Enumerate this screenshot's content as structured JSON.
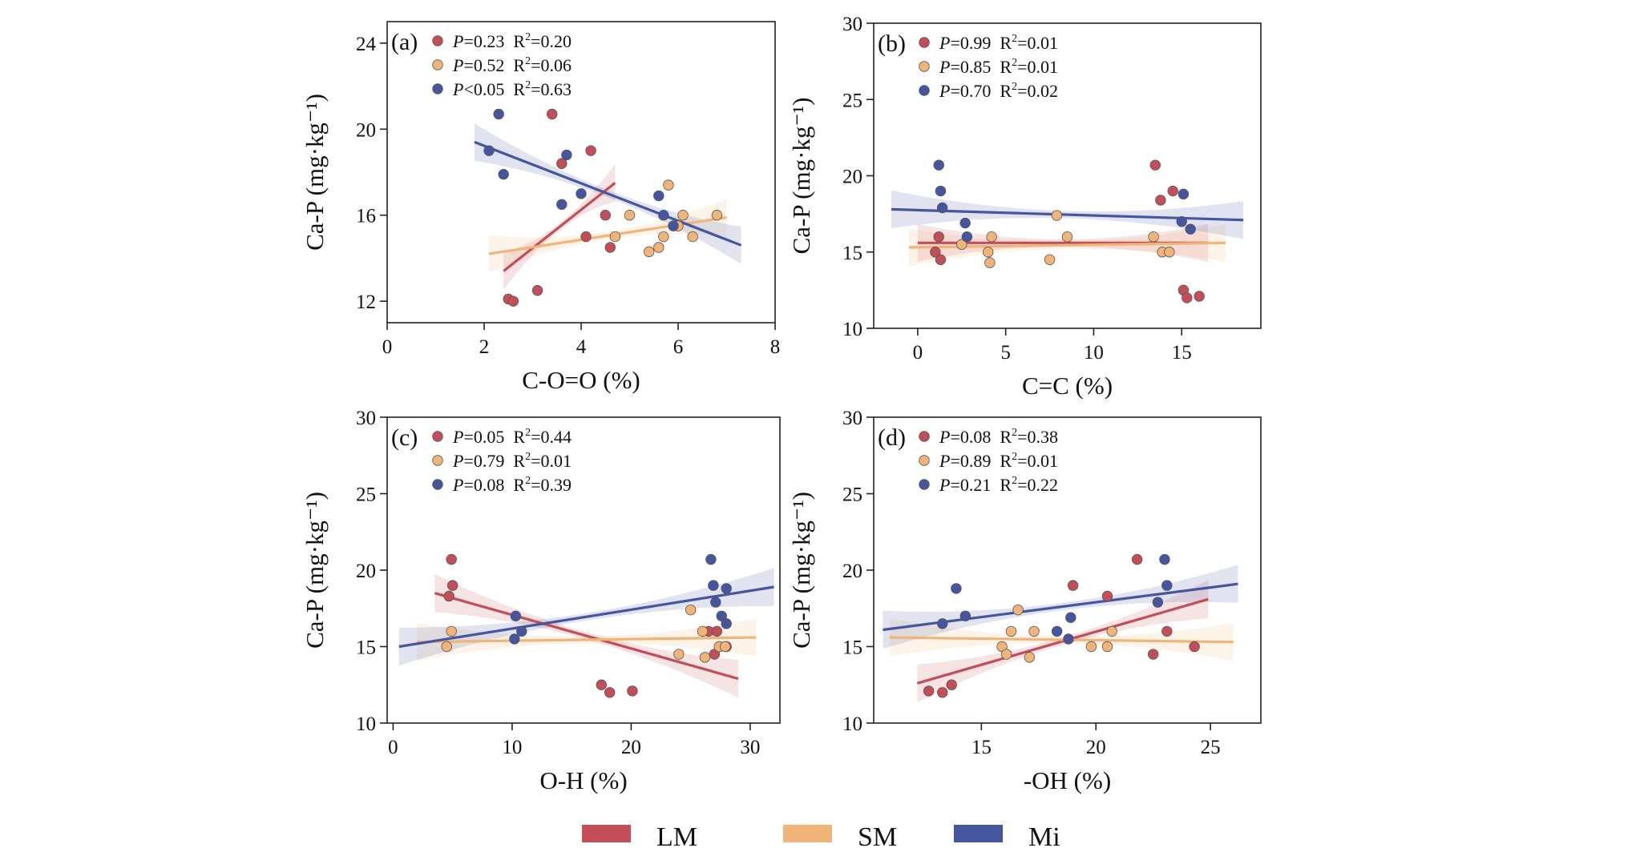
{
  "colors": {
    "LM": "#c44e58",
    "SM": "#f0b478",
    "Mi": "#4555a0"
  },
  "legend": [
    {
      "key": "LM",
      "label": "LM"
    },
    {
      "key": "SM",
      "label": "SM"
    },
    {
      "key": "Mi",
      "label": "Mi"
    }
  ],
  "chart_data": [
    {
      "type": "scatter",
      "panel": "(a)",
      "xlabel": "C-O=O (%)",
      "ylabel": "Ca-P (mg·kg⁻¹)",
      "xlim": [
        0,
        8
      ],
      "ylim": [
        11,
        25
      ],
      "xticks": [
        0,
        2,
        4,
        6,
        8
      ],
      "yticks": [
        12,
        16,
        20,
        24
      ],
      "stats": [
        {
          "series": "LM",
          "P": "=0.23",
          "R2": "=0.20"
        },
        {
          "series": "SM",
          "P": "=0.52",
          "R2": "=0.06"
        },
        {
          "series": "Mi",
          "P": "<0.05",
          "R2": "=0.63"
        }
      ],
      "series": [
        {
          "name": "LM",
          "points": [
            [
              2.5,
              12.1
            ],
            [
              2.6,
              12.0
            ],
            [
              3.1,
              12.5
            ],
            [
              3.4,
              20.7
            ],
            [
              3.6,
              18.4
            ],
            [
              4.1,
              15.0
            ],
            [
              4.2,
              19.0
            ],
            [
              4.5,
              16.0
            ],
            [
              4.6,
              14.5
            ]
          ],
          "fit": [
            [
              2.4,
              13.4
            ],
            [
              4.7,
              17.5
            ]
          ]
        },
        {
          "name": "SM",
          "points": [
            [
              4.7,
              15.0
            ],
            [
              5.0,
              16.0
            ],
            [
              5.4,
              14.3
            ],
            [
              5.6,
              14.5
            ],
            [
              5.7,
              15.0
            ],
            [
              5.8,
              17.4
            ],
            [
              6.0,
              15.5
            ],
            [
              6.1,
              16.0
            ],
            [
              6.3,
              15.0
            ],
            [
              6.8,
              16.0
            ]
          ],
          "fit": [
            [
              2.1,
              14.2
            ],
            [
              7.0,
              15.9
            ]
          ]
        },
        {
          "name": "Mi",
          "points": [
            [
              2.1,
              19.0
            ],
            [
              2.3,
              20.7
            ],
            [
              2.4,
              17.9
            ],
            [
              3.6,
              16.5
            ],
            [
              3.7,
              18.8
            ],
            [
              4.0,
              17.0
            ],
            [
              5.6,
              16.9
            ],
            [
              5.7,
              16.0
            ],
            [
              5.9,
              15.5
            ]
          ],
          "fit": [
            [
              1.8,
              19.4
            ],
            [
              7.3,
              14.6
            ]
          ]
        }
      ]
    },
    {
      "type": "scatter",
      "panel": "(b)",
      "xlabel": "C=C (%)",
      "ylabel": "Ca-P (mg·kg⁻¹)",
      "xlim": [
        -2.5,
        19.5
      ],
      "ylim": [
        10,
        30
      ],
      "xticks": [
        0,
        5,
        10,
        15
      ],
      "yticks": [
        10,
        15,
        20,
        25,
        30
      ],
      "stats": [
        {
          "series": "LM",
          "P": "=0.99",
          "R2": "=0.01"
        },
        {
          "series": "SM",
          "P": "=0.85",
          "R2": "=0.01"
        },
        {
          "series": "Mi",
          "P": "=0.70",
          "R2": "=0.02"
        }
      ],
      "series": [
        {
          "name": "LM",
          "points": [
            [
              1.0,
              15.0
            ],
            [
              1.2,
              16.0
            ],
            [
              1.3,
              14.5
            ],
            [
              13.5,
              20.7
            ],
            [
              13.8,
              18.4
            ],
            [
              14.5,
              19.0
            ],
            [
              15.1,
              12.5
            ],
            [
              15.3,
              12.0
            ],
            [
              16.0,
              12.1
            ]
          ],
          "fit": [
            [
              0.0,
              15.6
            ],
            [
              16.5,
              15.6
            ]
          ]
        },
        {
          "name": "SM",
          "points": [
            [
              2.5,
              15.5
            ],
            [
              4.0,
              15.0
            ],
            [
              4.1,
              14.3
            ],
            [
              4.2,
              16.0
            ],
            [
              7.5,
              14.5
            ],
            [
              7.9,
              17.4
            ],
            [
              8.5,
              16.0
            ],
            [
              13.4,
              16.0
            ],
            [
              13.9,
              15.0
            ],
            [
              14.3,
              15.0
            ]
          ],
          "fit": [
            [
              -0.5,
              15.3
            ],
            [
              17.5,
              15.6
            ]
          ]
        },
        {
          "name": "Mi",
          "points": [
            [
              1.2,
              20.7
            ],
            [
              1.3,
              19.0
            ],
            [
              1.4,
              17.9
            ],
            [
              2.7,
              16.9
            ],
            [
              2.8,
              16.0
            ],
            [
              15.0,
              17.0
            ],
            [
              15.1,
              18.8
            ],
            [
              15.5,
              16.5
            ]
          ],
          "fit": [
            [
              -1.5,
              17.8
            ],
            [
              18.5,
              17.1
            ]
          ]
        }
      ]
    },
    {
      "type": "scatter",
      "panel": "(c)",
      "xlabel": "O-H (%)",
      "ylabel": "Ca-P (mg·kg⁻¹)",
      "xlim": [
        -0.5,
        32.5
      ],
      "ylim": [
        10,
        30
      ],
      "xticks": [
        0,
        10,
        20,
        30
      ],
      "yticks": [
        10,
        15,
        20,
        25,
        30
      ],
      "stats": [
        {
          "series": "LM",
          "P": "=0.05",
          "R2": "=0.44"
        },
        {
          "series": "SM",
          "P": "=0.79",
          "R2": "=0.01"
        },
        {
          "series": "Mi",
          "P": "=0.08",
          "R2": "=0.39"
        }
      ],
      "series": [
        {
          "name": "LM",
          "points": [
            [
              4.7,
              18.3
            ],
            [
              4.9,
              20.7
            ],
            [
              5.0,
              19.0
            ],
            [
              17.5,
              12.5
            ],
            [
              18.2,
              12.0
            ],
            [
              20.1,
              12.1
            ],
            [
              26.5,
              16.0
            ],
            [
              27.0,
              14.5
            ],
            [
              27.2,
              16.0
            ],
            [
              28.0,
              15.0
            ]
          ],
          "fit": [
            [
              3.5,
              18.5
            ],
            [
              29.0,
              12.9
            ]
          ]
        },
        {
          "name": "SM",
          "points": [
            [
              4.5,
              15.0
            ],
            [
              4.9,
              16.0
            ],
            [
              24.0,
              14.5
            ],
            [
              25.0,
              17.4
            ],
            [
              26.0,
              16.0
            ],
            [
              26.2,
              14.3
            ],
            [
              27.4,
              15.0
            ],
            [
              27.9,
              15.0
            ]
          ],
          "fit": [
            [
              2.0,
              15.3
            ],
            [
              30.5,
              15.6
            ]
          ]
        },
        {
          "name": "Mi",
          "points": [
            [
              10.3,
              17.0
            ],
            [
              10.2,
              15.5
            ],
            [
              10.8,
              16.0
            ],
            [
              26.7,
              20.7
            ],
            [
              26.9,
              19.0
            ],
            [
              27.1,
              17.9
            ],
            [
              27.6,
              17.0
            ],
            [
              28.0,
              18.8
            ],
            [
              28.0,
              16.5
            ]
          ],
          "fit": [
            [
              0.5,
              15.0
            ],
            [
              32.0,
              18.9
            ]
          ]
        }
      ]
    },
    {
      "type": "scatter",
      "panel": "(d)",
      "xlabel": "-OH (%)",
      "ylabel": "Ca-P (mg·kg⁻¹)",
      "xlim": [
        10.3,
        27.2
      ],
      "ylim": [
        10,
        30
      ],
      "xticks": [
        15,
        20,
        25
      ],
      "yticks": [
        10,
        15,
        20,
        25,
        30
      ],
      "stats": [
        {
          "series": "LM",
          "P": "=0.08",
          "R2": "=0.38"
        },
        {
          "series": "SM",
          "P": "=0.89",
          "R2": "=0.01"
        },
        {
          "series": "Mi",
          "P": "=0.21",
          "R2": "=0.22"
        }
      ],
      "series": [
        {
          "name": "LM",
          "points": [
            [
              12.7,
              12.1
            ],
            [
              13.3,
              12.0
            ],
            [
              13.7,
              12.5
            ],
            [
              19.0,
              19.0
            ],
            [
              20.5,
              18.3
            ],
            [
              21.8,
              20.7
            ],
            [
              22.5,
              14.5
            ],
            [
              23.1,
              16.0
            ],
            [
              24.3,
              15.0
            ]
          ],
          "fit": [
            [
              12.2,
              12.6
            ],
            [
              24.9,
              18.1
            ]
          ]
        },
        {
          "name": "SM",
          "points": [
            [
              15.9,
              15.0
            ],
            [
              16.1,
              14.5
            ],
            [
              16.3,
              16.0
            ],
            [
              16.6,
              17.4
            ],
            [
              17.1,
              14.3
            ],
            [
              17.3,
              16.0
            ],
            [
              19.8,
              15.0
            ],
            [
              20.5,
              15.0
            ],
            [
              20.7,
              16.0
            ]
          ],
          "fit": [
            [
              11.0,
              15.6
            ],
            [
              26.0,
              15.3
            ]
          ]
        },
        {
          "name": "Mi",
          "points": [
            [
              13.3,
              16.5
            ],
            [
              13.9,
              18.8
            ],
            [
              14.3,
              17.0
            ],
            [
              18.3,
              16.0
            ],
            [
              18.8,
              15.5
            ],
            [
              18.9,
              16.9
            ],
            [
              22.7,
              17.9
            ],
            [
              23.0,
              20.7
            ],
            [
              23.1,
              19.0
            ]
          ],
          "fit": [
            [
              10.7,
              16.1
            ],
            [
              26.2,
              19.1
            ]
          ]
        }
      ]
    }
  ]
}
